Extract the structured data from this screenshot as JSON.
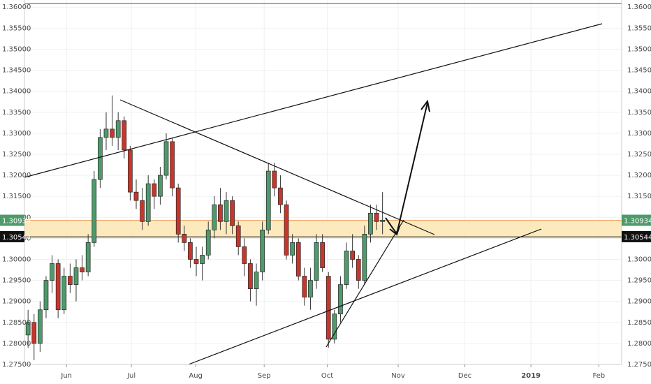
{
  "chart_data": {
    "type": "candlestick",
    "up_color": "#4e9a6b",
    "down_color": "#c8362b",
    "grid": true,
    "xlim": [
      -0.6,
      98.8
    ],
    "ylim": [
      1.275,
      1.3617
    ],
    "yticks": [
      {
        "value": 1.275,
        "label": "1.27500"
      },
      {
        "value": 1.28,
        "label": "1.28000"
      },
      {
        "value": 1.285,
        "label": "1.28500"
      },
      {
        "value": 1.29,
        "label": "1.29000"
      },
      {
        "value": 1.295,
        "label": "1.29500"
      },
      {
        "value": 1.3,
        "label": "1.30000"
      },
      {
        "value": 1.305,
        "label": "1.30500"
      },
      {
        "value": 1.31,
        "label": "1.31000"
      },
      {
        "value": 1.315,
        "label": "1.31500"
      },
      {
        "value": 1.32,
        "label": "1.32000"
      },
      {
        "value": 1.325,
        "label": "1.32500"
      },
      {
        "value": 1.33,
        "label": "1.33000"
      },
      {
        "value": 1.335,
        "label": "1.33500"
      },
      {
        "value": 1.34,
        "label": "1.34000"
      },
      {
        "value": 1.345,
        "label": "1.34500"
      },
      {
        "value": 1.35,
        "label": "1.35000"
      },
      {
        "value": 1.355,
        "label": "1.35500"
      },
      {
        "value": 1.36,
        "label": "1.36000"
      }
    ],
    "xticks": [
      {
        "value": 6.4,
        "label": "Jun"
      },
      {
        "value": 17.2,
        "label": "Jul"
      },
      {
        "value": 27.9,
        "label": "Aug"
      },
      {
        "value": 39.3,
        "label": "Sep"
      },
      {
        "value": 49.8,
        "label": "Oct"
      },
      {
        "value": 61.6,
        "label": "Nov"
      },
      {
        "value": 72.7,
        "label": "Dec"
      },
      {
        "value": 83.7,
        "label": "2019"
      },
      {
        "value": 95,
        "label": "Feb"
      }
    ],
    "price_labels": [
      {
        "value": 1.3093,
        "label": "1.30934",
        "color": "#4e9a6b"
      },
      {
        "value": 1.3054,
        "label": "1.30544",
        "color": "#111111"
      }
    ],
    "open": [
      1.282,
      1.285,
      1.28,
      1.288,
      1.295,
      1.299,
      1.288,
      1.296,
      1.294,
      1.298,
      1.297,
      1.304,
      1.319,
      1.329,
      1.331,
      1.329,
      1.333,
      1.326,
      1.316,
      1.314,
      1.309,
      1.318,
      1.315,
      1.32,
      1.328,
      1.317,
      1.306,
      1.304,
      1.3,
      1.299,
      1.301,
      1.307,
      1.313,
      1.309,
      1.314,
      1.308,
      1.303,
      1.299,
      1.293,
      1.297,
      1.307,
      1.321,
      1.317,
      1.313,
      1.301,
      1.304,
      1.296,
      1.291,
      1.295,
      1.304,
      1.296,
      1.281,
      1.287,
      1.294,
      1.302,
      1.3,
      1.295,
      1.306,
      1.311,
      1.309
    ],
    "high": [
      1.288,
      1.287,
      1.29,
      1.296,
      1.301,
      1.3,
      1.298,
      1.299,
      1.3,
      1.301,
      1.306,
      1.321,
      1.331,
      1.335,
      1.339,
      1.335,
      1.334,
      1.327,
      1.319,
      1.317,
      1.32,
      1.319,
      1.322,
      1.33,
      1.329,
      1.318,
      1.308,
      1.305,
      1.303,
      1.303,
      1.309,
      1.315,
      1.317,
      1.316,
      1.315,
      1.309,
      1.305,
      1.3,
      1.299,
      1.309,
      1.323,
      1.323,
      1.32,
      1.314,
      1.306,
      1.305,
      1.298,
      1.298,
      1.306,
      1.306,
      1.297,
      1.288,
      1.296,
      1.304,
      1.306,
      1.301,
      1.308,
      1.313,
      1.313,
      1.316
    ],
    "low": [
      1.279,
      1.276,
      1.278,
      1.286,
      1.292,
      1.286,
      1.287,
      1.292,
      1.29,
      1.295,
      1.296,
      1.303,
      1.317,
      1.326,
      1.327,
      1.326,
      1.324,
      1.314,
      1.312,
      1.307,
      1.308,
      1.312,
      1.313,
      1.319,
      1.315,
      1.304,
      1.302,
      1.298,
      1.296,
      1.295,
      1.3,
      1.305,
      1.307,
      1.306,
      1.306,
      1.301,
      1.296,
      1.29,
      1.289,
      1.295,
      1.306,
      1.315,
      1.311,
      1.3,
      1.299,
      1.295,
      1.289,
      1.288,
      1.293,
      1.297,
      1.279,
      1.28,
      1.285,
      1.293,
      1.298,
      1.293,
      1.294,
      1.304,
      1.307,
      1.306
    ],
    "close": [
      1.285,
      1.28,
      1.288,
      1.295,
      1.299,
      1.288,
      1.296,
      1.294,
      1.298,
      1.297,
      1.304,
      1.319,
      1.329,
      1.331,
      1.329,
      1.333,
      1.326,
      1.316,
      1.314,
      1.309,
      1.318,
      1.315,
      1.32,
      1.328,
      1.317,
      1.306,
      1.304,
      1.3,
      1.299,
      1.301,
      1.307,
      1.313,
      1.309,
      1.314,
      1.308,
      1.303,
      1.299,
      1.293,
      1.297,
      1.307,
      1.321,
      1.317,
      1.313,
      1.301,
      1.304,
      1.296,
      1.291,
      1.295,
      1.304,
      1.298,
      1.281,
      1.287,
      1.294,
      1.302,
      1.3,
      1.295,
      1.306,
      1.311,
      1.309,
      1.3093
    ]
  }
}
